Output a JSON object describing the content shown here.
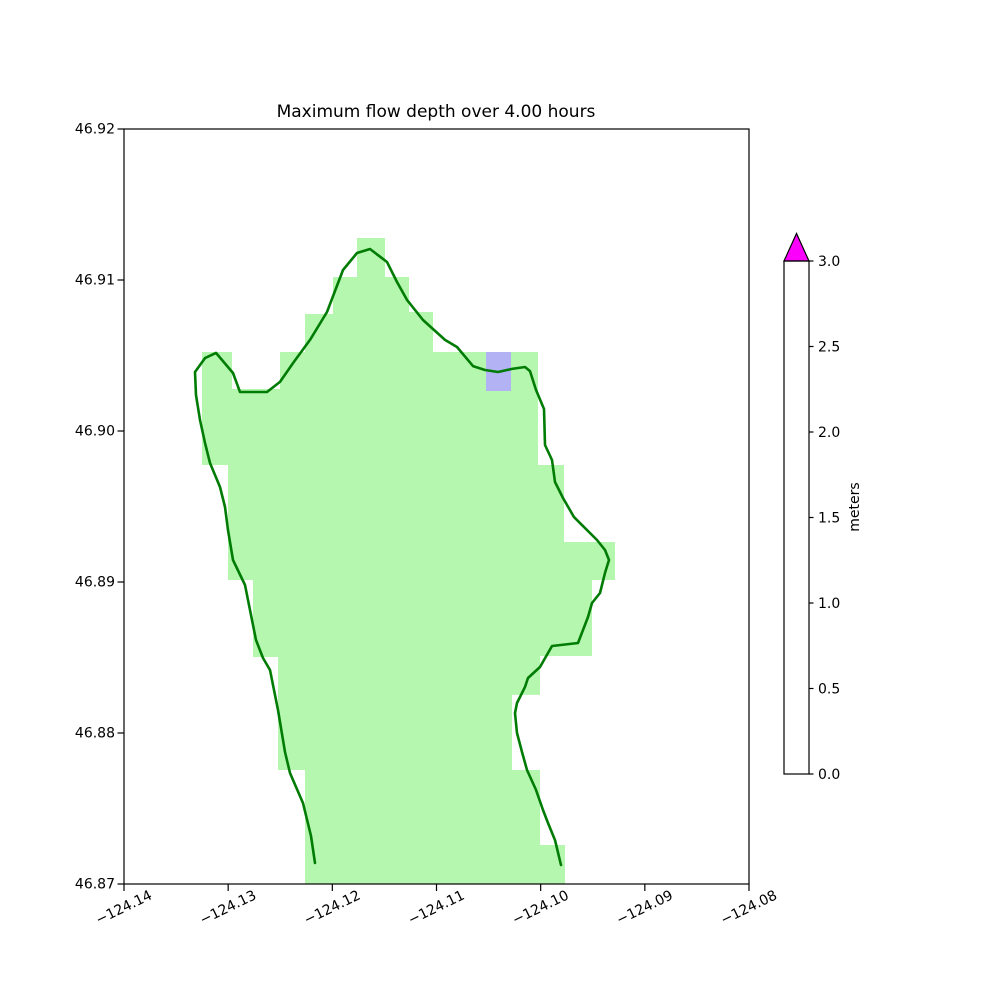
{
  "title": "Maximum flow depth over 4.00 hours",
  "axes": {
    "xlim": [
      -124.14,
      -124.08
    ],
    "ylim": [
      46.87,
      46.92
    ],
    "x_tick_values": [
      -124.14,
      -124.13,
      -124.12,
      -124.11,
      -124.1,
      -124.09,
      -124.08
    ],
    "x_tick_labels": [
      "−124.14",
      "−124.13",
      "−124.12",
      "−124.11",
      "−124.10",
      "−124.09",
      "−124.08"
    ],
    "y_tick_values": [
      46.92,
      46.91,
      46.9,
      46.89,
      46.88,
      46.87
    ],
    "y_tick_labels": [
      "46.92",
      "46.91",
      "46.90",
      "46.89",
      "46.88",
      "46.87"
    ]
  },
  "chart_data": {
    "type": "heatmap",
    "title": "Maximum flow depth over 4.00 hours",
    "xlabel": "",
    "ylabel": "",
    "xlim": [
      -124.14,
      -124.08
    ],
    "ylim": [
      46.87,
      46.92
    ],
    "grid": false,
    "legend_position": "right-colorbar",
    "colorbar": {
      "label": "meters",
      "tick_values": [
        0.0,
        0.5,
        1.0,
        1.5,
        2.0,
        2.5,
        3.0
      ],
      "tick_labels": [
        "0.0",
        "0.5",
        "1.0",
        "1.5",
        "2.0",
        "2.5",
        "3.0"
      ],
      "level_boundaries": [
        0.0,
        0.5,
        1.0,
        1.5,
        2.0,
        2.5,
        3.0
      ],
      "level_colors": [
        "#bdbdf8",
        "#8585f1",
        "#0909f1",
        "#fdadad",
        "#f97070",
        "#f60202"
      ],
      "over_color": "#fb00fb",
      "over_value": "> 3.0"
    },
    "land_fill_color": "#b6f7b0",
    "coastline_color": "#007c05",
    "frame_color": "#000000",
    "flooded_cell": {
      "lon_min": -124.10525,
      "lon_max": -124.10285,
      "lat_min": 46.90265,
      "lat_max": 46.90523,
      "depth_bin_meters": "0.0 - 0.5",
      "color": "#b2b2f5"
    },
    "land_region": [
      [
        -124.13251,
        46.90523
      ],
      [
        -124.12963,
        46.90523
      ],
      [
        -124.12963,
        46.90278
      ],
      [
        -124.12502,
        46.90278
      ],
      [
        -124.12502,
        46.90523
      ],
      [
        -124.12262,
        46.90523
      ],
      [
        -124.12262,
        46.90775
      ],
      [
        -124.11994,
        46.90775
      ],
      [
        -124.11994,
        46.9102
      ],
      [
        -124.11763,
        46.9102
      ],
      [
        -124.11763,
        46.91278
      ],
      [
        -124.11494,
        46.91278
      ],
      [
        -124.11494,
        46.9102
      ],
      [
        -124.11264,
        46.9102
      ],
      [
        -124.11264,
        46.90788
      ],
      [
        -124.11034,
        46.90788
      ],
      [
        -124.11034,
        46.90523
      ],
      [
        -124.10026,
        46.90523
      ],
      [
        -124.10026,
        46.89775
      ],
      [
        -124.09776,
        46.89775
      ],
      [
        -124.09776,
        46.89265
      ],
      [
        -124.09286,
        46.89265
      ],
      [
        -124.09286,
        46.89013
      ],
      [
        -124.09507,
        46.89013
      ],
      [
        -124.09507,
        46.8851
      ],
      [
        -124.10006,
        46.8851
      ],
      [
        -124.10006,
        46.88252
      ],
      [
        -124.10275,
        46.88252
      ],
      [
        -124.10275,
        46.87755
      ],
      [
        -124.10006,
        46.87755
      ],
      [
        -124.10006,
        46.87258
      ],
      [
        -124.09766,
        46.87258
      ],
      [
        -124.09766,
        46.87
      ],
      [
        -124.12262,
        46.87
      ],
      [
        -124.12262,
        46.87755
      ],
      [
        -124.12522,
        46.87755
      ],
      [
        -124.12522,
        46.88503
      ],
      [
        -124.12762,
        46.88503
      ],
      [
        -124.12762,
        46.89013
      ],
      [
        -124.13002,
        46.89013
      ],
      [
        -124.13002,
        46.89775
      ],
      [
        -124.13251,
        46.89775
      ]
    ],
    "coastline": [
      [
        -124.12166,
        46.87139
      ],
      [
        -124.12205,
        46.87318
      ],
      [
        -124.12282,
        46.87536
      ],
      [
        -124.12406,
        46.87735
      ],
      [
        -124.12454,
        46.87874
      ],
      [
        -124.12522,
        46.88152
      ],
      [
        -124.12598,
        46.88417
      ],
      [
        -124.12666,
        46.88497
      ],
      [
        -124.12733,
        46.88616
      ],
      [
        -124.12838,
        46.8898
      ],
      [
        -124.12954,
        46.89146
      ],
      [
        -124.13002,
        46.89344
      ],
      [
        -124.1303,
        46.89497
      ],
      [
        -124.13078,
        46.89629
      ],
      [
        -124.13174,
        46.89788
      ],
      [
        -124.13222,
        46.89921
      ],
      [
        -124.1327,
        46.90073
      ],
      [
        -124.13309,
        46.90238
      ],
      [
        -124.13318,
        46.90391
      ],
      [
        -124.13222,
        46.90483
      ],
      [
        -124.13117,
        46.90517
      ],
      [
        -124.12954,
        46.90384
      ],
      [
        -124.12886,
        46.90258
      ],
      [
        -124.12627,
        46.90258
      ],
      [
        -124.12502,
        46.90325
      ],
      [
        -124.12378,
        46.9045
      ],
      [
        -124.12214,
        46.90603
      ],
      [
        -124.12051,
        46.90788
      ],
      [
        -124.11898,
        46.91066
      ],
      [
        -124.11763,
        46.91179
      ],
      [
        -124.11638,
        46.91205
      ],
      [
        -124.11475,
        46.91119
      ],
      [
        -124.11379,
        46.90987
      ],
      [
        -124.11283,
        46.90868
      ],
      [
        -124.1113,
        46.90735
      ],
      [
        -124.10918,
        46.90603
      ],
      [
        -124.10803,
        46.90556
      ],
      [
        -124.1065,
        46.9043
      ],
      [
        -124.10534,
        46.90404
      ],
      [
        -124.1041,
        46.90391
      ],
      [
        -124.10275,
        46.90411
      ],
      [
        -124.1015,
        46.90424
      ],
      [
        -124.10102,
        46.90397
      ],
      [
        -124.10045,
        46.90272
      ],
      [
        -124.09968,
        46.90146
      ],
      [
        -124.09958,
        46.89907
      ],
      [
        -124.09891,
        46.89808
      ],
      [
        -124.09862,
        46.89662
      ],
      [
        -124.09786,
        46.89556
      ],
      [
        -124.0968,
        46.8943
      ],
      [
        -124.09603,
        46.89377
      ],
      [
        -124.09459,
        46.89278
      ],
      [
        -124.09382,
        46.89212
      ],
      [
        -124.09344,
        46.89146
      ],
      [
        -124.09382,
        46.8906
      ],
      [
        -124.0943,
        46.88927
      ],
      [
        -124.09507,
        46.88861
      ],
      [
        -124.09546,
        46.88768
      ],
      [
        -124.09594,
        46.88682
      ],
      [
        -124.09642,
        46.88596
      ],
      [
        -124.09891,
        46.88576
      ],
      [
        -124.10006,
        46.88437
      ],
      [
        -124.10122,
        46.88364
      ],
      [
        -124.1015,
        46.88305
      ],
      [
        -124.10227,
        46.88199
      ],
      [
        -124.10246,
        46.88132
      ],
      [
        -124.10227,
        46.88
      ],
      [
        -124.10179,
        46.87874
      ],
      [
        -124.10131,
        46.87755
      ],
      [
        -124.10045,
        46.87623
      ],
      [
        -124.09978,
        46.8749
      ],
      [
        -124.0993,
        46.87404
      ],
      [
        -124.09862,
        46.87291
      ],
      [
        -124.09805,
        46.87126
      ]
    ]
  }
}
